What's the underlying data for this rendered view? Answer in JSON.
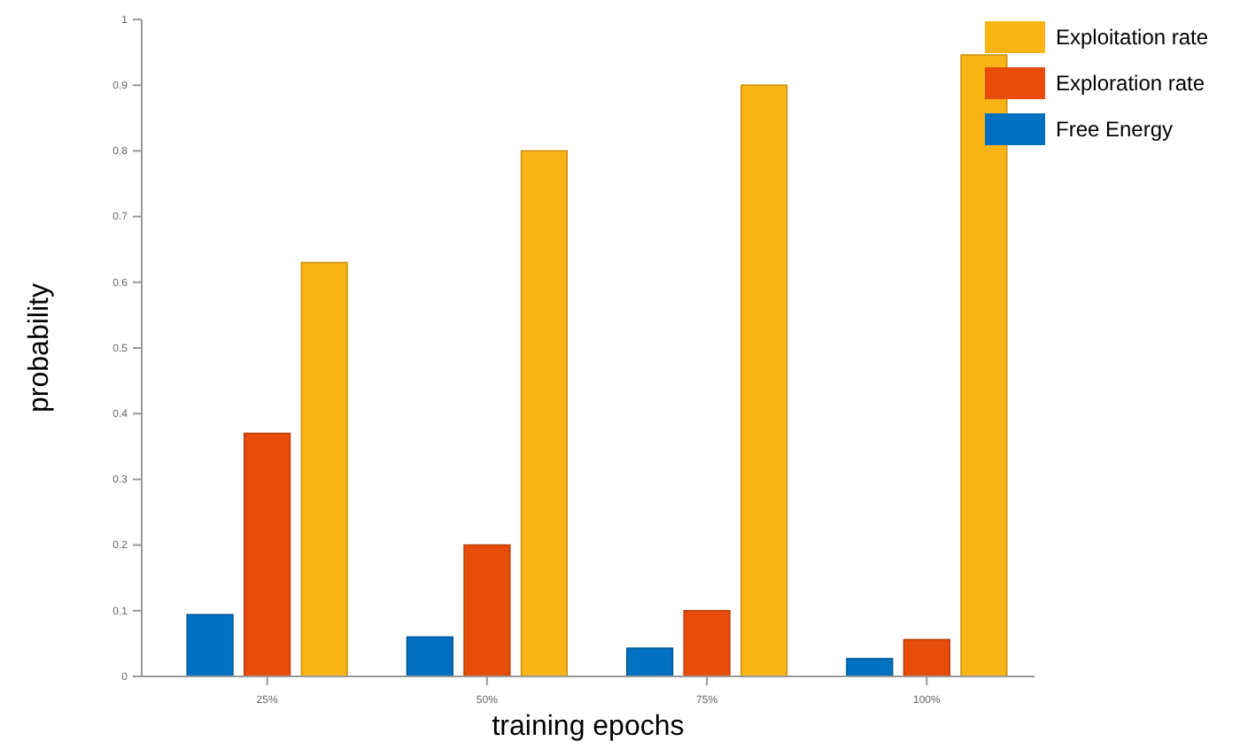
{
  "chart_data": {
    "type": "bar",
    "xlabel": "training epochs",
    "ylabel": "probability",
    "categories": [
      "25%",
      "50%",
      "75%",
      "100%"
    ],
    "series": [
      {
        "name": "Free Energy",
        "color": "#0070c0",
        "values": [
          0.094,
          0.06,
          0.043,
          0.027
        ]
      },
      {
        "name": "Exploration rate",
        "color": "#e84c0a",
        "values": [
          0.37,
          0.2,
          0.1,
          0.056
        ]
      },
      {
        "name": "Exploitation rate",
        "color": "#fbb416",
        "values": [
          0.63,
          0.8,
          0.9,
          0.946
        ]
      }
    ],
    "ylim": [
      0,
      1
    ],
    "yticks": [
      0,
      0.1,
      0.2,
      0.3,
      0.4,
      0.5,
      0.6,
      0.7,
      0.8,
      0.9,
      1
    ],
    "grid": false,
    "legend": "top right"
  }
}
